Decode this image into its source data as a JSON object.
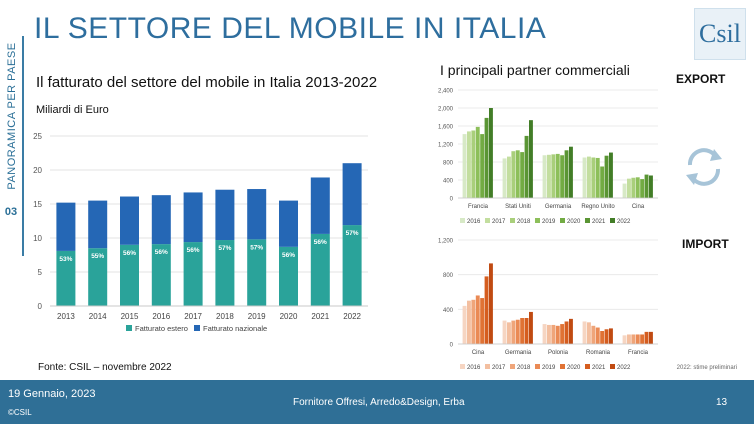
{
  "header": {
    "title": "IL SETTORE DEL MOBILE IN ITALIA",
    "logo_text": "Csil",
    "side_label": "PANORAMICA PER PAESE",
    "side_number": "03"
  },
  "left_panel": {
    "subtitle": "Il fatturato del settore del mobile in Italia 2013-2022",
    "unit": "Miliardi di Euro",
    "source": "Fonte: CSIL – novembre 2022"
  },
  "right_panel": {
    "subtitle": "I principali partner commerciali",
    "export_label": "EXPORT",
    "import_label": "IMPORT",
    "note": "2022: stime preliminari"
  },
  "footer": {
    "date": "19 Gennaio, 2023",
    "copyright": "©CSIL",
    "center": "Fornitore Offresi, Arredo&Design, Erba",
    "page": "13"
  },
  "colors": {
    "estero": "#2aa39a",
    "nazionale": "#2567b5",
    "green": [
      "#d7e9c6",
      "#c3de9f",
      "#a9cf7b",
      "#8dbf5a",
      "#72ab43",
      "#5a9534",
      "#427d27"
    ],
    "orange": [
      "#f6d5c2",
      "#f3bfa0",
      "#efa57a",
      "#ea8a55",
      "#e07234",
      "#d55d1f",
      "#c04a12"
    ]
  },
  "chart_data": [
    {
      "type": "bar",
      "stacked": true,
      "title": "Il fatturato del settore del mobile in Italia 2013-2022",
      "ylabel": "Miliardi di Euro",
      "categories": [
        "2013",
        "2014",
        "2015",
        "2016",
        "2017",
        "2018",
        "2019",
        "2020",
        "2021",
        "2022"
      ],
      "series": [
        {
          "name": "Fatturato estero",
          "values": [
            8.1,
            8.5,
            9.0,
            9.1,
            9.4,
            9.7,
            9.8,
            8.7,
            10.6,
            11.9
          ]
        },
        {
          "name": "Fatturato nazionale",
          "values": [
            7.1,
            7.0,
            7.1,
            7.2,
            7.3,
            7.4,
            7.4,
            6.8,
            8.3,
            9.1
          ]
        }
      ],
      "labels": [
        "53%",
        "55%",
        "56%",
        "56%",
        "56%",
        "57%",
        "57%",
        "56%",
        "56%",
        "57%"
      ],
      "yticks": [
        0,
        5,
        10,
        15,
        20,
        25
      ],
      "ylim": [
        0,
        25
      ],
      "legend": [
        "Fatturato estero",
        "Fatturato nazionale"
      ]
    },
    {
      "type": "bar",
      "title": "EXPORT",
      "categories": [
        "Francia",
        "Stati Uniti",
        "Germania",
        "Regno Unito",
        "Cina"
      ],
      "series_names": [
        "2016",
        "2017",
        "2018",
        "2019",
        "2020",
        "2021",
        "2022"
      ],
      "values": [
        [
          1420,
          1480,
          1500,
          1580,
          1420,
          1780,
          2000
        ],
        [
          880,
          920,
          1040,
          1060,
          1020,
          1380,
          1730
        ],
        [
          950,
          960,
          970,
          980,
          950,
          1060,
          1140
        ],
        [
          900,
          920,
          900,
          890,
          700,
          940,
          1010
        ],
        [
          320,
          430,
          450,
          460,
          420,
          520,
          500
        ]
      ],
      "yticks": [
        "0",
        "400",
        "800",
        "1,200",
        "1,600",
        "2,000",
        "2,400"
      ],
      "ylim": [
        0,
        2400
      ]
    },
    {
      "type": "bar",
      "title": "IMPORT",
      "categories": [
        "Cina",
        "Germania",
        "Polonia",
        "Romania",
        "Francia"
      ],
      "series_names": [
        "2016",
        "2017",
        "2018",
        "2019",
        "2020",
        "2021",
        "2022"
      ],
      "values": [
        [
          440,
          500,
          510,
          560,
          530,
          780,
          930
        ],
        [
          270,
          250,
          270,
          280,
          300,
          300,
          370
        ],
        [
          230,
          220,
          220,
          210,
          230,
          260,
          290
        ],
        [
          260,
          250,
          210,
          190,
          150,
          170,
          180
        ],
        [
          100,
          110,
          110,
          110,
          110,
          140,
          140
        ]
      ],
      "yticks": [
        "0",
        "400",
        "800",
        "1,200"
      ],
      "ylim": [
        0,
        1200
      ]
    }
  ]
}
